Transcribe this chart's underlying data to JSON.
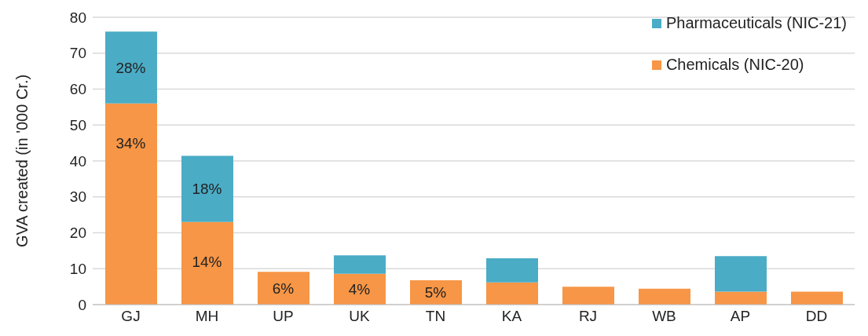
{
  "chart_data": {
    "type": "bar",
    "stacked": true,
    "ylabel": "GVA created (in '000 Cr.)",
    "categories": [
      "GJ",
      "MH",
      "UP",
      "UK",
      "TN",
      "KA",
      "RJ",
      "WB",
      "AP",
      "DD"
    ],
    "series": [
      {
        "name": "Chemicals (NIC-20)",
        "color": "#f79646",
        "values": [
          56,
          23,
          9.1,
          8.6,
          6.8,
          6.2,
          5.0,
          4.4,
          3.6,
          3.6
        ]
      },
      {
        "name": "Pharmaceuticals (NIC-21)",
        "color": "#4bacc6",
        "values": [
          20,
          18.4,
          null,
          5.1,
          null,
          6.7,
          null,
          null,
          9.9,
          null
        ]
      }
    ],
    "annotations": [
      {
        "text": "34%",
        "x": "GJ",
        "y": 56
      },
      {
        "text": "28%",
        "x": "GJ",
        "y": 76
      },
      {
        "text": "14%",
        "x": "MH",
        "y": 23
      },
      {
        "text": "18%",
        "x": "MH",
        "y": 41.4
      },
      {
        "text": "6%",
        "x": "UP",
        "y": 9.1
      },
      {
        "text": "4%",
        "x": "UK",
        "y": 8.6
      },
      {
        "text": "5%",
        "x": "TN",
        "y": 6.8
      }
    ],
    "ylim": [
      0,
      80
    ],
    "yticks": [
      0,
      10,
      20,
      30,
      40,
      50,
      60,
      70,
      80
    ],
    "grid": "y",
    "legend": "top right"
  }
}
